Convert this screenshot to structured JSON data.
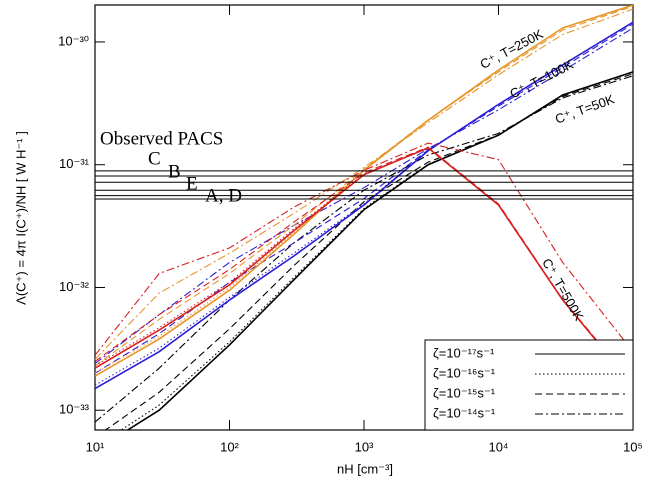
{
  "chart_data": {
    "type": "line",
    "xlabel": "nH [cm⁻³]",
    "ylabel": "Λ(C⁺) = 4π I(C⁺)/NH [ W H⁻¹ ]",
    "xscale": "log",
    "yscale": "log",
    "xlim": [
      10,
      100000
    ],
    "ylim": [
      6.9e-34,
      2e-30
    ],
    "xticks": [
      {
        "value": 10,
        "label": "10¹"
      },
      {
        "value": 100,
        "label": "10²"
      },
      {
        "value": 1000,
        "label": "10³"
      },
      {
        "value": 10000,
        "label": "10⁴"
      },
      {
        "value": 100000,
        "label": "10⁵"
      }
    ],
    "yticks": [
      {
        "value": 1e-33,
        "label": "10⁻³³"
      },
      {
        "value": 1e-32,
        "label": "10⁻³²"
      },
      {
        "value": 1e-31,
        "label": "10⁻³¹"
      },
      {
        "value": 1e-30,
        "label": "10⁻³⁰"
      }
    ],
    "x": [
      10,
      30,
      100,
      300,
      1000,
      3000,
      10000,
      30000,
      100000
    ],
    "series": [
      {
        "color": "#000000",
        "dash": "solid",
        "values": [
          4.7e-34,
          1e-33,
          3.4e-33,
          1.15e-32,
          4.3e-32,
          1e-31,
          1.74e-31,
          3.7e-31,
          5.7e-31
        ]
      },
      {
        "color": "#000000",
        "dash": "dotted",
        "values": [
          5e-34,
          1.1e-33,
          3.6e-33,
          1.2e-32,
          4.4e-32,
          1.01e-31,
          1.74e-31,
          3.7e-31,
          5.7e-31
        ]
      },
      {
        "color": "#000000",
        "dash": "dashed",
        "values": [
          6e-34,
          1.4e-33,
          4.6e-33,
          1.5e-32,
          5e-32,
          1.05e-31,
          1.75e-31,
          3.6e-31,
          5.5e-31
        ]
      },
      {
        "color": "#000000",
        "dash": "dashdot",
        "values": [
          8e-34,
          2.2e-33,
          7.9e-33,
          2.3e-32,
          6.2e-32,
          1.2e-31,
          1.8e-31,
          3.5e-31,
          5.3e-31
        ]
      },
      {
        "color": "#2a1fd6",
        "dash": "solid",
        "values": [
          1.5e-33,
          3e-33,
          7.9e-33,
          1.8e-32,
          4.7e-32,
          1.3e-31,
          3.1e-31,
          6.5e-31,
          1.45e-30
        ]
      },
      {
        "color": "#2a1fd6",
        "dash": "dotted",
        "values": [
          1.6e-33,
          3.2e-33,
          8.3e-33,
          1.9e-32,
          4.8e-32,
          1.31e-31,
          3.1e-31,
          6.5e-31,
          1.45e-30
        ]
      },
      {
        "color": "#2a1fd6",
        "dash": "dashed",
        "values": [
          2e-33,
          4.2e-33,
          1.1e-32,
          2.3e-32,
          5.3e-32,
          1.32e-31,
          3e-31,
          6.2e-31,
          1.4e-30
        ]
      },
      {
        "color": "#2a1fd6",
        "dash": "dashdot",
        "values": [
          2.4e-33,
          6e-33,
          1.6e-32,
          3.2e-32,
          6.5e-32,
          1.35e-31,
          2.8e-31,
          5.8e-31,
          1.3e-30
        ]
      },
      {
        "color": "#e8952a",
        "dash": "solid",
        "values": [
          1.9e-33,
          3.8e-33,
          9.5e-33,
          2.7e-32,
          9e-32,
          2.3e-31,
          5.9e-31,
          1.3e-30,
          2e-30
        ]
      },
      {
        "color": "#e8952a",
        "dash": "dotted",
        "values": [
          2e-33,
          4e-33,
          1e-32,
          2.8e-32,
          9.1e-32,
          2.31e-31,
          5.9e-31,
          1.3e-30,
          2e-30
        ]
      },
      {
        "color": "#e8952a",
        "dash": "dashed",
        "values": [
          2.3e-33,
          5.5e-33,
          1.3e-32,
          3.2e-32,
          9.2e-32,
          2.32e-31,
          5.7e-31,
          1.25e-30,
          1.95e-30
        ]
      },
      {
        "color": "#e8952a",
        "dash": "dashdot",
        "values": [
          2.6e-33,
          9e-33,
          1.9e-32,
          4e-32,
          9.5e-32,
          2.2e-31,
          5.4e-31,
          1.15e-30,
          1.85e-30
        ]
      },
      {
        "color": "#d82020",
        "dash": "solid",
        "values": [
          2.2e-33,
          4.5e-33,
          1.05e-32,
          2.9e-32,
          8.3e-32,
          1.37e-31,
          4.7e-32,
          7.9e-33,
          1.6e-33
        ]
      },
      {
        "color": "#d82020",
        "dash": "dotted",
        "values": [
          2.3e-33,
          4.7e-33,
          1.1e-32,
          3e-32,
          8.4e-32,
          1.38e-31,
          4.75e-32,
          7.95e-33,
          1.62e-33
        ]
      },
      {
        "color": "#d82020",
        "dash": "dashed",
        "values": [
          2.5e-33,
          6e-33,
          1.4e-32,
          3.4e-32,
          8.6e-32,
          1.39e-31,
          4.8e-32,
          8e-33,
          1.65e-33
        ]
      },
      {
        "color": "#d82020",
        "dash": "dashdot",
        "values": [
          2.8e-33,
          1.3e-32,
          2.1e-32,
          4.5e-32,
          9e-32,
          1.5e-31,
          1.1e-31,
          1.6e-32,
          3e-33
        ]
      }
    ],
    "curve_labels": [
      {
        "text": "C⁺, T=250K",
        "color": "#e8952a"
      },
      {
        "text": "C⁺, T=100K",
        "color": "#2a1fd6"
      },
      {
        "text": "C⁺, T=50K",
        "color": "#000000"
      },
      {
        "text": "C⁺, T=500K",
        "color": "#d82020"
      }
    ],
    "observed": {
      "label": "Observed PACS",
      "names": [
        "C",
        "B",
        "E",
        "A, D"
      ],
      "levels": [
        8.9e-32,
        8.1e-32,
        7.2e-32,
        6.2e-32,
        5.6e-32,
        5.25e-32
      ]
    },
    "legend": [
      {
        "label": "ζ=10⁻¹⁷s⁻¹",
        "dash": "solid"
      },
      {
        "label": "ζ=10⁻¹⁶s⁻¹",
        "dash": "dotted"
      },
      {
        "label": "ζ=10⁻¹⁵s⁻¹",
        "dash": "dashed"
      },
      {
        "label": "ζ=10⁻¹⁴s⁻¹",
        "dash": "dashdot"
      }
    ],
    "legend_position": "lower right"
  }
}
